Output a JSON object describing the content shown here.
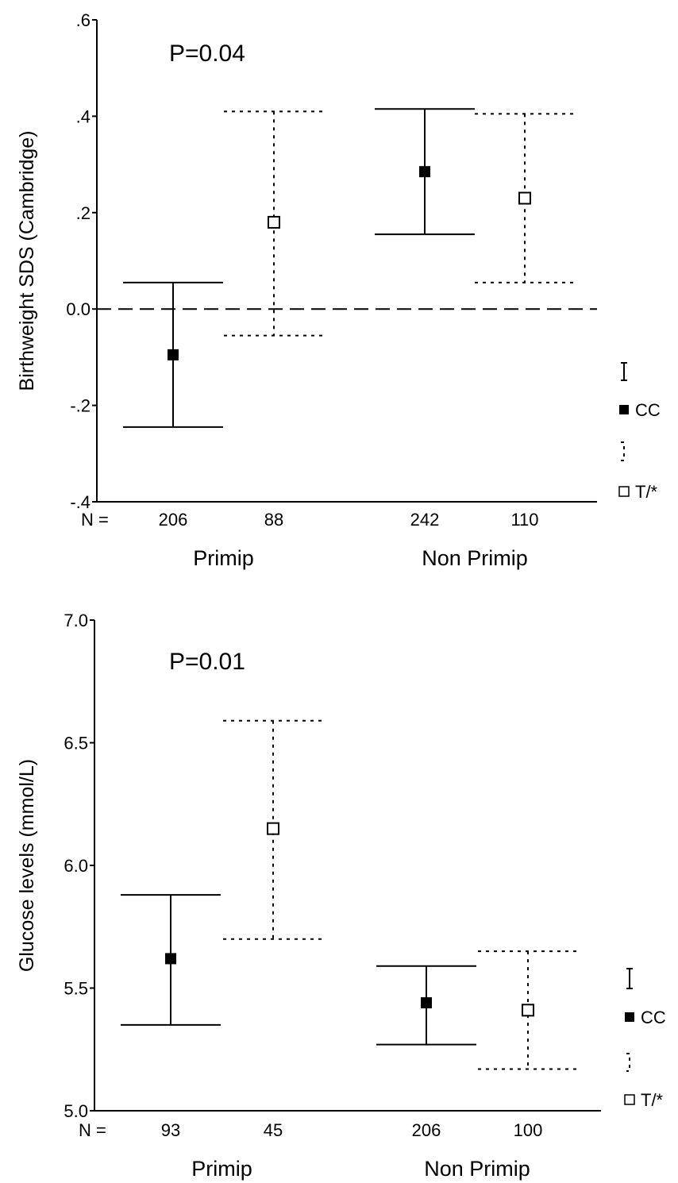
{
  "chart_data": [
    {
      "type": "errorbar",
      "ylabel": "Birthweight SDS (Cambridge)",
      "annotation": "P=0.04",
      "ylim": [
        -0.4,
        0.6
      ],
      "yticks": [
        ".6",
        ".4",
        ".2",
        "0.0",
        "-.2",
        "-.4"
      ],
      "ytick_values": [
        0.6,
        0.4,
        0.2,
        0.0,
        -0.2,
        -0.4
      ],
      "reference_line": 0.0,
      "n_label": "N =",
      "groups": [
        "Primip",
        "Non Primip"
      ],
      "series": [
        {
          "name": "CC",
          "marker": "filled-square",
          "line": "solid",
          "values": [
            {
              "group": "Primip",
              "n": "206",
              "mean": -0.095,
              "lower": -0.245,
              "upper": 0.055
            },
            {
              "group": "Non Primip",
              "n": "242",
              "mean": 0.285,
              "lower": 0.155,
              "upper": 0.415
            }
          ]
        },
        {
          "name": "T/*",
          "marker": "open-square",
          "line": "dotted",
          "values": [
            {
              "group": "Primip",
              "n": "88",
              "mean": 0.18,
              "lower": -0.055,
              "upper": 0.41
            },
            {
              "group": "Non Primip",
              "n": "110",
              "mean": 0.23,
              "lower": 0.055,
              "upper": 0.405
            }
          ]
        }
      ],
      "legend": [
        "CC",
        "T/*"
      ],
      "legend_position": "right"
    },
    {
      "type": "errorbar",
      "ylabel": "Glucose levels (mmol/L)",
      "annotation": "P=0.01",
      "ylim": [
        5.0,
        7.0
      ],
      "yticks": [
        "7.0",
        "6.5",
        "6.0",
        "5.5",
        "5.0"
      ],
      "ytick_values": [
        7.0,
        6.5,
        6.0,
        5.5,
        5.0
      ],
      "n_label": "N =",
      "groups": [
        "Primip",
        "Non Primip"
      ],
      "series": [
        {
          "name": "CC",
          "marker": "filled-square",
          "line": "solid",
          "values": [
            {
              "group": "Primip",
              "n": "93",
              "mean": 5.62,
              "lower": 5.35,
              "upper": 5.88
            },
            {
              "group": "Non Primip",
              "n": "206",
              "mean": 5.44,
              "lower": 5.27,
              "upper": 5.59
            }
          ]
        },
        {
          "name": "T/*",
          "marker": "open-square",
          "line": "dotted",
          "values": [
            {
              "group": "Primip",
              "n": "45",
              "mean": 6.15,
              "lower": 5.7,
              "upper": 6.59
            },
            {
              "group": "Non Primip",
              "n": "100",
              "mean": 5.41,
              "lower": 5.17,
              "upper": 5.65
            }
          ]
        }
      ],
      "legend": [
        "CC",
        "T/*"
      ],
      "legend_position": "right"
    }
  ]
}
